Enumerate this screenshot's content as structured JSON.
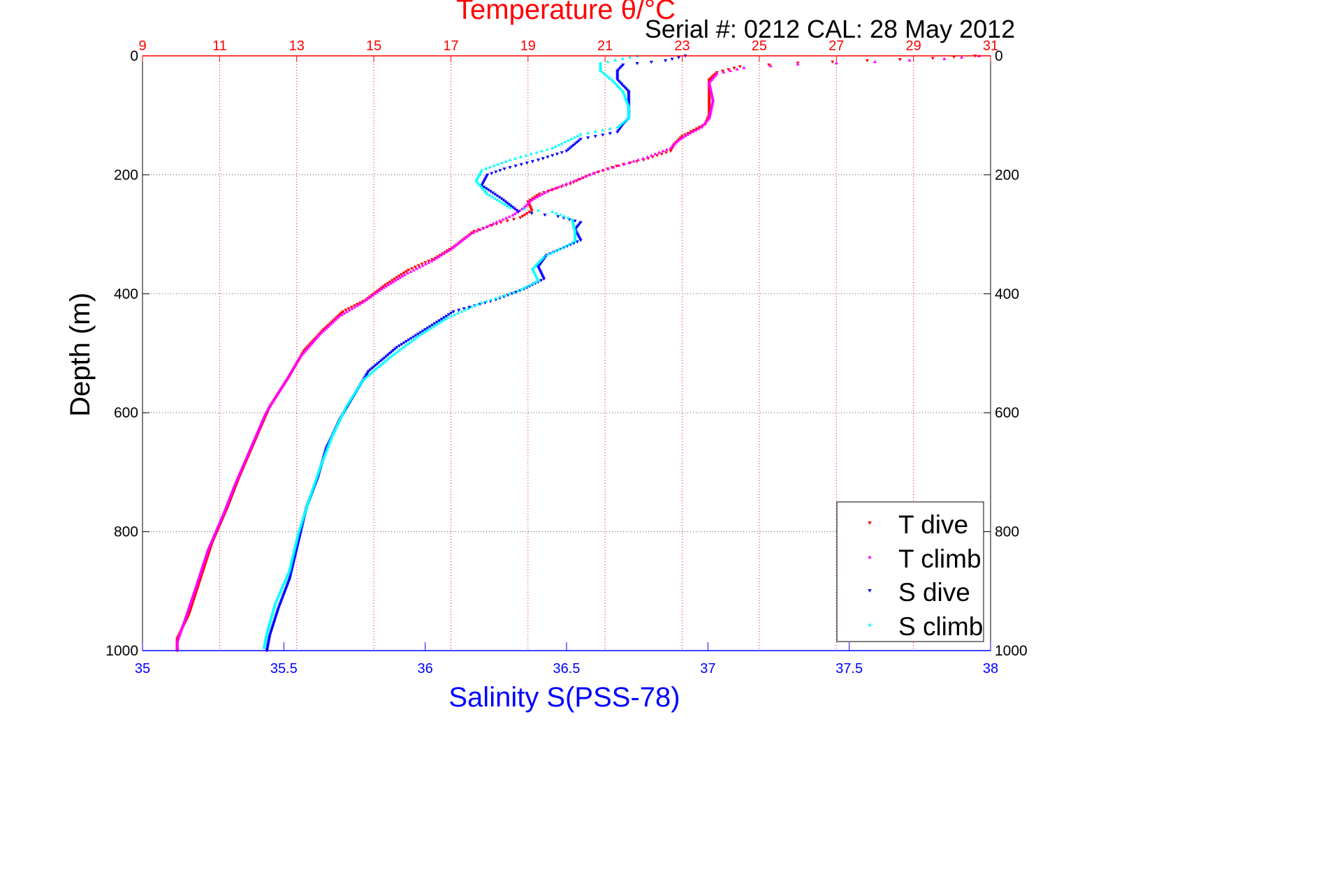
{
  "chart_data": {
    "type": "scatter",
    "title": "Temperature θ/°C",
    "subtitle": "Serial #: 0212  CAL: 28 May 2012",
    "ylabel": "Depth (m)",
    "xlabel_bottom": "Salinity S(PSS-78)",
    "y_axis": {
      "range": [
        0,
        1000
      ],
      "reversed": true,
      "ticks": [
        "0",
        "200",
        "400",
        "600",
        "800",
        "1000"
      ]
    },
    "top_axis": {
      "quantity": "temperature",
      "range": [
        9,
        31
      ],
      "ticks": [
        "9",
        "11",
        "13",
        "15",
        "17",
        "19",
        "21",
        "23",
        "25",
        "27",
        "29",
        "31"
      ],
      "color": "#ff0000",
      "grid": true
    },
    "bottom_axis": {
      "quantity": "salinity",
      "range": [
        35,
        38
      ],
      "ticks": [
        "35",
        "35.5",
        "36",
        "36.5",
        "37",
        "37.5",
        "38"
      ],
      "color": "#0000ff"
    },
    "depth_grid": true,
    "legend_position": "bottom-right",
    "series": [
      {
        "name": "T dive",
        "axis": "temperature",
        "color": "#ff0000",
        "marker": "triangle-down",
        "points": [
          [
            30.6,
            0
          ],
          [
            29.5,
            4
          ],
          [
            27.8,
            8
          ],
          [
            26.0,
            12
          ],
          [
            24.5,
            18
          ],
          [
            23.9,
            28
          ],
          [
            23.7,
            40
          ],
          [
            23.7,
            70
          ],
          [
            23.7,
            100
          ],
          [
            23.6,
            115
          ],
          [
            23.3,
            125
          ],
          [
            23.0,
            135
          ],
          [
            22.8,
            148
          ],
          [
            22.7,
            160
          ],
          [
            22.0,
            175
          ],
          [
            21.3,
            185
          ],
          [
            20.6,
            200
          ],
          [
            20.1,
            215
          ],
          [
            19.3,
            232
          ],
          [
            19.0,
            245
          ],
          [
            19.1,
            260
          ],
          [
            18.8,
            272
          ],
          [
            18.3,
            280
          ],
          [
            17.6,
            295
          ],
          [
            17.1,
            320
          ],
          [
            16.6,
            340
          ],
          [
            15.9,
            360
          ],
          [
            15.3,
            385
          ],
          [
            14.8,
            410
          ],
          [
            14.2,
            430
          ],
          [
            13.7,
            460
          ],
          [
            13.2,
            495
          ],
          [
            12.8,
            540
          ],
          [
            12.3,
            590
          ],
          [
            11.9,
            650
          ],
          [
            11.5,
            710
          ],
          [
            11.2,
            760
          ],
          [
            10.8,
            820
          ],
          [
            10.5,
            880
          ],
          [
            10.2,
            940
          ],
          [
            9.9,
            980
          ],
          [
            9.9,
            1000
          ]
        ]
      },
      {
        "name": "T climb",
        "axis": "temperature",
        "color": "#ff00ff",
        "marker": "triangle-up",
        "points": [
          [
            30.7,
            0
          ],
          [
            29.8,
            5
          ],
          [
            28.0,
            10
          ],
          [
            26.0,
            14
          ],
          [
            24.6,
            20
          ],
          [
            23.9,
            30
          ],
          [
            23.7,
            45
          ],
          [
            23.8,
            75
          ],
          [
            23.7,
            105
          ],
          [
            23.5,
            120
          ],
          [
            23.2,
            130
          ],
          [
            22.9,
            142
          ],
          [
            22.7,
            155
          ],
          [
            22.1,
            170
          ],
          [
            21.5,
            182
          ],
          [
            20.8,
            195
          ],
          [
            20.2,
            210
          ],
          [
            19.5,
            228
          ],
          [
            19.1,
            242
          ],
          [
            18.9,
            255
          ],
          [
            18.6,
            268
          ],
          [
            18.1,
            282
          ],
          [
            17.5,
            300
          ],
          [
            17.0,
            325
          ],
          [
            16.5,
            345
          ],
          [
            15.8,
            368
          ],
          [
            15.2,
            392
          ],
          [
            14.7,
            415
          ],
          [
            14.1,
            438
          ],
          [
            13.6,
            468
          ],
          [
            13.1,
            505
          ],
          [
            12.7,
            548
          ],
          [
            12.2,
            600
          ],
          [
            11.8,
            660
          ],
          [
            11.4,
            720
          ],
          [
            11.1,
            770
          ],
          [
            10.7,
            830
          ],
          [
            10.4,
            890
          ],
          [
            10.1,
            948
          ],
          [
            9.9,
            985
          ],
          [
            9.9,
            998
          ]
        ]
      },
      {
        "name": "S dive",
        "axis": "salinity",
        "color": "#0000ff",
        "marker": "triangle-down",
        "points": [
          [
            36.92,
            0
          ],
          [
            36.85,
            8
          ],
          [
            36.7,
            15
          ],
          [
            36.68,
            25
          ],
          [
            36.68,
            40
          ],
          [
            36.72,
            60
          ],
          [
            36.72,
            85
          ],
          [
            36.72,
            105
          ],
          [
            36.7,
            115
          ],
          [
            36.68,
            128
          ],
          [
            36.55,
            140
          ],
          [
            36.5,
            160
          ],
          [
            36.4,
            175
          ],
          [
            36.28,
            190
          ],
          [
            36.22,
            200
          ],
          [
            36.2,
            218
          ],
          [
            36.27,
            240
          ],
          [
            36.33,
            262
          ],
          [
            36.47,
            270
          ],
          [
            36.55,
            280
          ],
          [
            36.53,
            292
          ],
          [
            36.55,
            310
          ],
          [
            36.43,
            335
          ],
          [
            36.4,
            355
          ],
          [
            36.42,
            375
          ],
          [
            36.35,
            392
          ],
          [
            36.25,
            410
          ],
          [
            36.1,
            430
          ],
          [
            36.0,
            460
          ],
          [
            35.9,
            490
          ],
          [
            35.8,
            530
          ],
          [
            35.75,
            570
          ],
          [
            35.7,
            610
          ],
          [
            35.65,
            660
          ],
          [
            35.62,
            710
          ],
          [
            35.58,
            760
          ],
          [
            35.55,
            820
          ],
          [
            35.52,
            880
          ],
          [
            35.48,
            930
          ],
          [
            35.45,
            975
          ],
          [
            35.44,
            1000
          ]
        ]
      },
      {
        "name": "S climb",
        "axis": "salinity",
        "color": "#00ffff",
        "marker": "triangle-up",
        "points": [
          [
            36.75,
            0
          ],
          [
            36.62,
            12
          ],
          [
            36.62,
            25
          ],
          [
            36.66,
            40
          ],
          [
            36.7,
            60
          ],
          [
            36.72,
            85
          ],
          [
            36.72,
            105
          ],
          [
            36.68,
            120
          ],
          [
            36.55,
            132
          ],
          [
            36.45,
            155
          ],
          [
            36.3,
            175
          ],
          [
            36.2,
            192
          ],
          [
            36.18,
            210
          ],
          [
            36.22,
            232
          ],
          [
            36.3,
            255
          ],
          [
            36.45,
            262
          ],
          [
            36.52,
            275
          ],
          [
            36.53,
            295
          ],
          [
            36.53,
            312
          ],
          [
            36.42,
            338
          ],
          [
            36.38,
            358
          ],
          [
            36.4,
            378
          ],
          [
            36.33,
            395
          ],
          [
            36.2,
            415
          ],
          [
            36.08,
            440
          ],
          [
            35.98,
            470
          ],
          [
            35.88,
            505
          ],
          [
            35.78,
            545
          ],
          [
            35.72,
            590
          ],
          [
            35.67,
            640
          ],
          [
            35.63,
            690
          ],
          [
            35.59,
            745
          ],
          [
            35.55,
            805
          ],
          [
            35.52,
            865
          ],
          [
            35.47,
            920
          ],
          [
            35.44,
            970
          ],
          [
            35.43,
            995
          ]
        ]
      }
    ]
  }
}
